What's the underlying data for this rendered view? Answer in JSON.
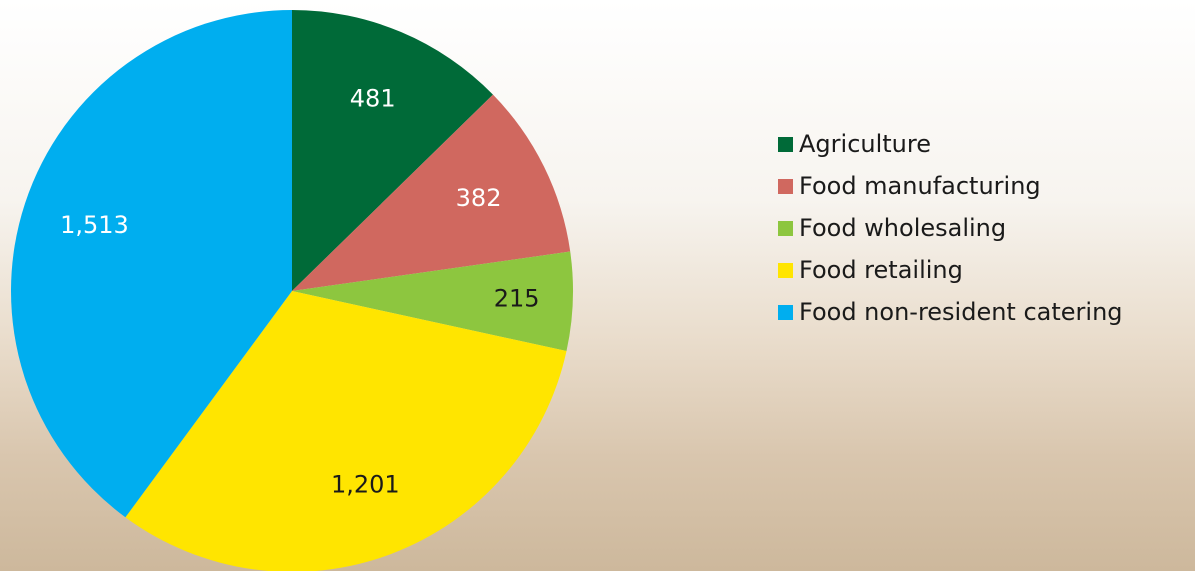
{
  "chart_data": {
    "type": "pie",
    "categories": [
      "Agriculture",
      "Food manufacturing",
      "Food wholesaling",
      "Food retailing",
      "Food non-resident catering"
    ],
    "values": [
      481,
      382,
      215,
      1201,
      1513
    ],
    "value_labels": [
      "481",
      "382",
      "215",
      "1,201",
      "1,513"
    ],
    "colors": [
      "#006a38",
      "#d0685f",
      "#8dc63f",
      "#ffe500",
      "#00aeef"
    ],
    "legend": "right"
  }
}
